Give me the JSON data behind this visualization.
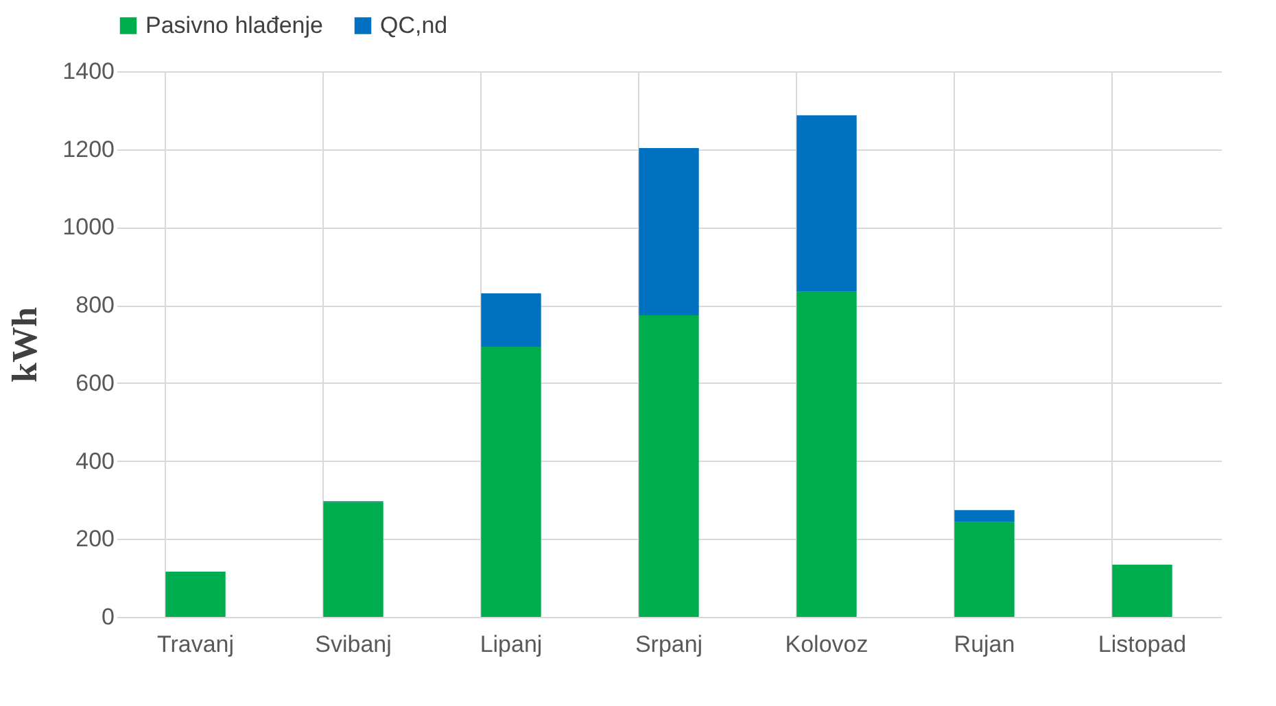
{
  "chart_data": {
    "type": "bar",
    "stacked": true,
    "ylabel": "kWh",
    "categories": [
      "Travanj",
      "Svibanj",
      "Lipanj",
      "Srpanj",
      "Kolovoz",
      "Rujan",
      "Listopad"
    ],
    "series": [
      {
        "name": "Pasivno hlađenje",
        "color": "#00ad4e",
        "values": [
          116,
          295,
          693,
          774,
          834,
          243,
          134
        ]
      },
      {
        "name": "QC,nd",
        "color": "#0070c0",
        "values": [
          0,
          2,
          137,
          429,
          453,
          31,
          0
        ]
      }
    ],
    "ylim": [
      0,
      1400
    ],
    "yticks": [
      0,
      200,
      400,
      600,
      800,
      1000,
      1200,
      1400
    ],
    "grid": true,
    "legend": "top"
  }
}
